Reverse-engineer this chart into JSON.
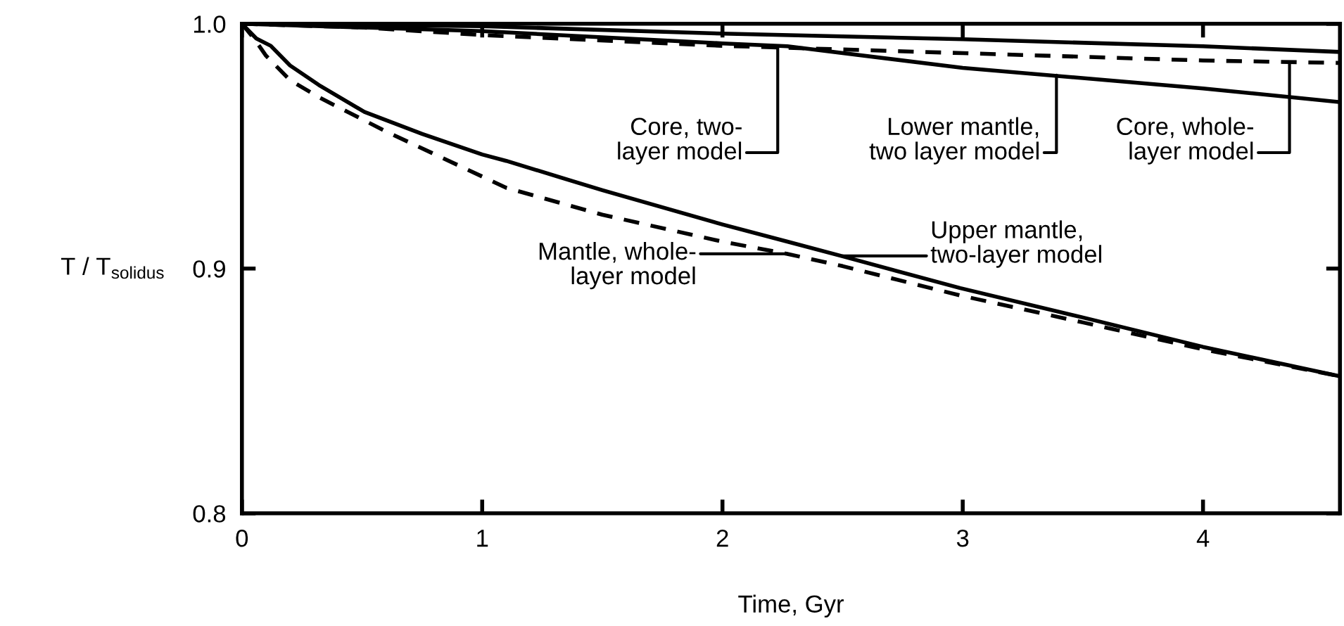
{
  "chart_data": {
    "type": "line",
    "xlabel": "Time, Gyr",
    "ylabel": "T / T$_{solidus}$",
    "xlim": [
      0,
      4.57
    ],
    "ylim": [
      0.8,
      1.0
    ],
    "xticks": [
      0,
      1,
      2,
      3,
      4
    ],
    "yticks": [
      {
        "value": 0.8,
        "label": "0.8"
      },
      {
        "value": 0.9,
        "label": "0.9"
      },
      {
        "value": 1.0,
        "label": "1.0"
      }
    ],
    "grid": false,
    "legend": false,
    "marker": "none",
    "series": [
      {
        "color": "#000000",
        "line_style": "solid",
        "x": [
          0,
          0.06,
          0.12,
          0.2,
          0.32,
          0.51,
          0.75,
          1.0,
          1.1,
          1.5,
          2.0,
          2.27,
          2.5,
          2.99,
          3.5,
          4.0,
          4.57
        ],
        "values": [
          1.0,
          0.994,
          0.991,
          0.983,
          0.975,
          0.964,
          0.955,
          0.9466,
          0.944,
          0.932,
          0.918,
          0.911,
          0.905,
          0.892,
          0.88,
          0.868,
          0.856
        ]
      },
      {
        "color": "#000000",
        "line_style": "dashed",
        "x": [
          0,
          0.05,
          0.1,
          0.2,
          0.32,
          0.6,
          1.1,
          1.5,
          2.0,
          2.27,
          2.5,
          2.99,
          3.5,
          4.0,
          4.57
        ],
        "values": [
          1.0,
          0.994,
          0.987,
          0.977,
          0.97,
          0.956,
          0.933,
          0.922,
          0.911,
          0.906,
          0.901,
          0.889,
          0.878,
          0.867,
          0.856
        ]
      },
      {
        "color": "#000000",
        "line_style": "solid",
        "x": [
          0,
          1,
          2,
          3,
          4,
          4.57
        ],
        "values": [
          1.0,
          0.999,
          0.996,
          0.9937,
          0.9908,
          0.9885
        ]
      },
      {
        "color": "#000000",
        "line_style": "solid",
        "x": [
          0,
          1,
          2,
          2.27,
          3,
          4,
          4.57
        ],
        "values": [
          1.0,
          0.997,
          0.992,
          0.9908,
          0.982,
          0.9736,
          0.968
        ]
      },
      {
        "color": "#000000",
        "line_style": "dashed",
        "x": [
          0,
          0.5,
          1,
          2,
          3,
          4,
          4.57
        ],
        "values": [
          1.0,
          0.9985,
          0.9954,
          0.991,
          0.988,
          0.985,
          0.984
        ]
      }
    ],
    "annotations": [
      {
        "text": "Core, two-\nlayer model",
        "x": 2.23,
        "y": 0.991
      },
      {
        "text": "Lower mantle,\ntwo layer model",
        "x": 3.39,
        "y": 0.979
      },
      {
        "text": "Core, whole-\nlayer model",
        "x": 4.36,
        "y": 0.984
      },
      "Upper mantle,\ntwo-layer model",
      "Mantle, whole-\nlayer model"
    ]
  }
}
